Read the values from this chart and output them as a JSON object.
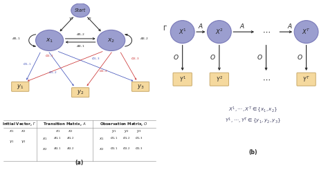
{
  "node_color": "#9b9ecf",
  "obs_color": "#f5d99e",
  "obs_edge": "#c8a96a",
  "node_edge": "#7878b8",
  "text_dark": "#222222",
  "text_blue": "#4455bb",
  "text_red": "#cc3333",
  "title_a": "(a)",
  "title_b": "(b)",
  "eq1": "$X^1, \\cdots, X^T \\in \\{x_1, x_2\\}$",
  "eq2": "$Y^1, \\cdots, Y^T \\in \\{y_1, y_2, y_3\\}$"
}
